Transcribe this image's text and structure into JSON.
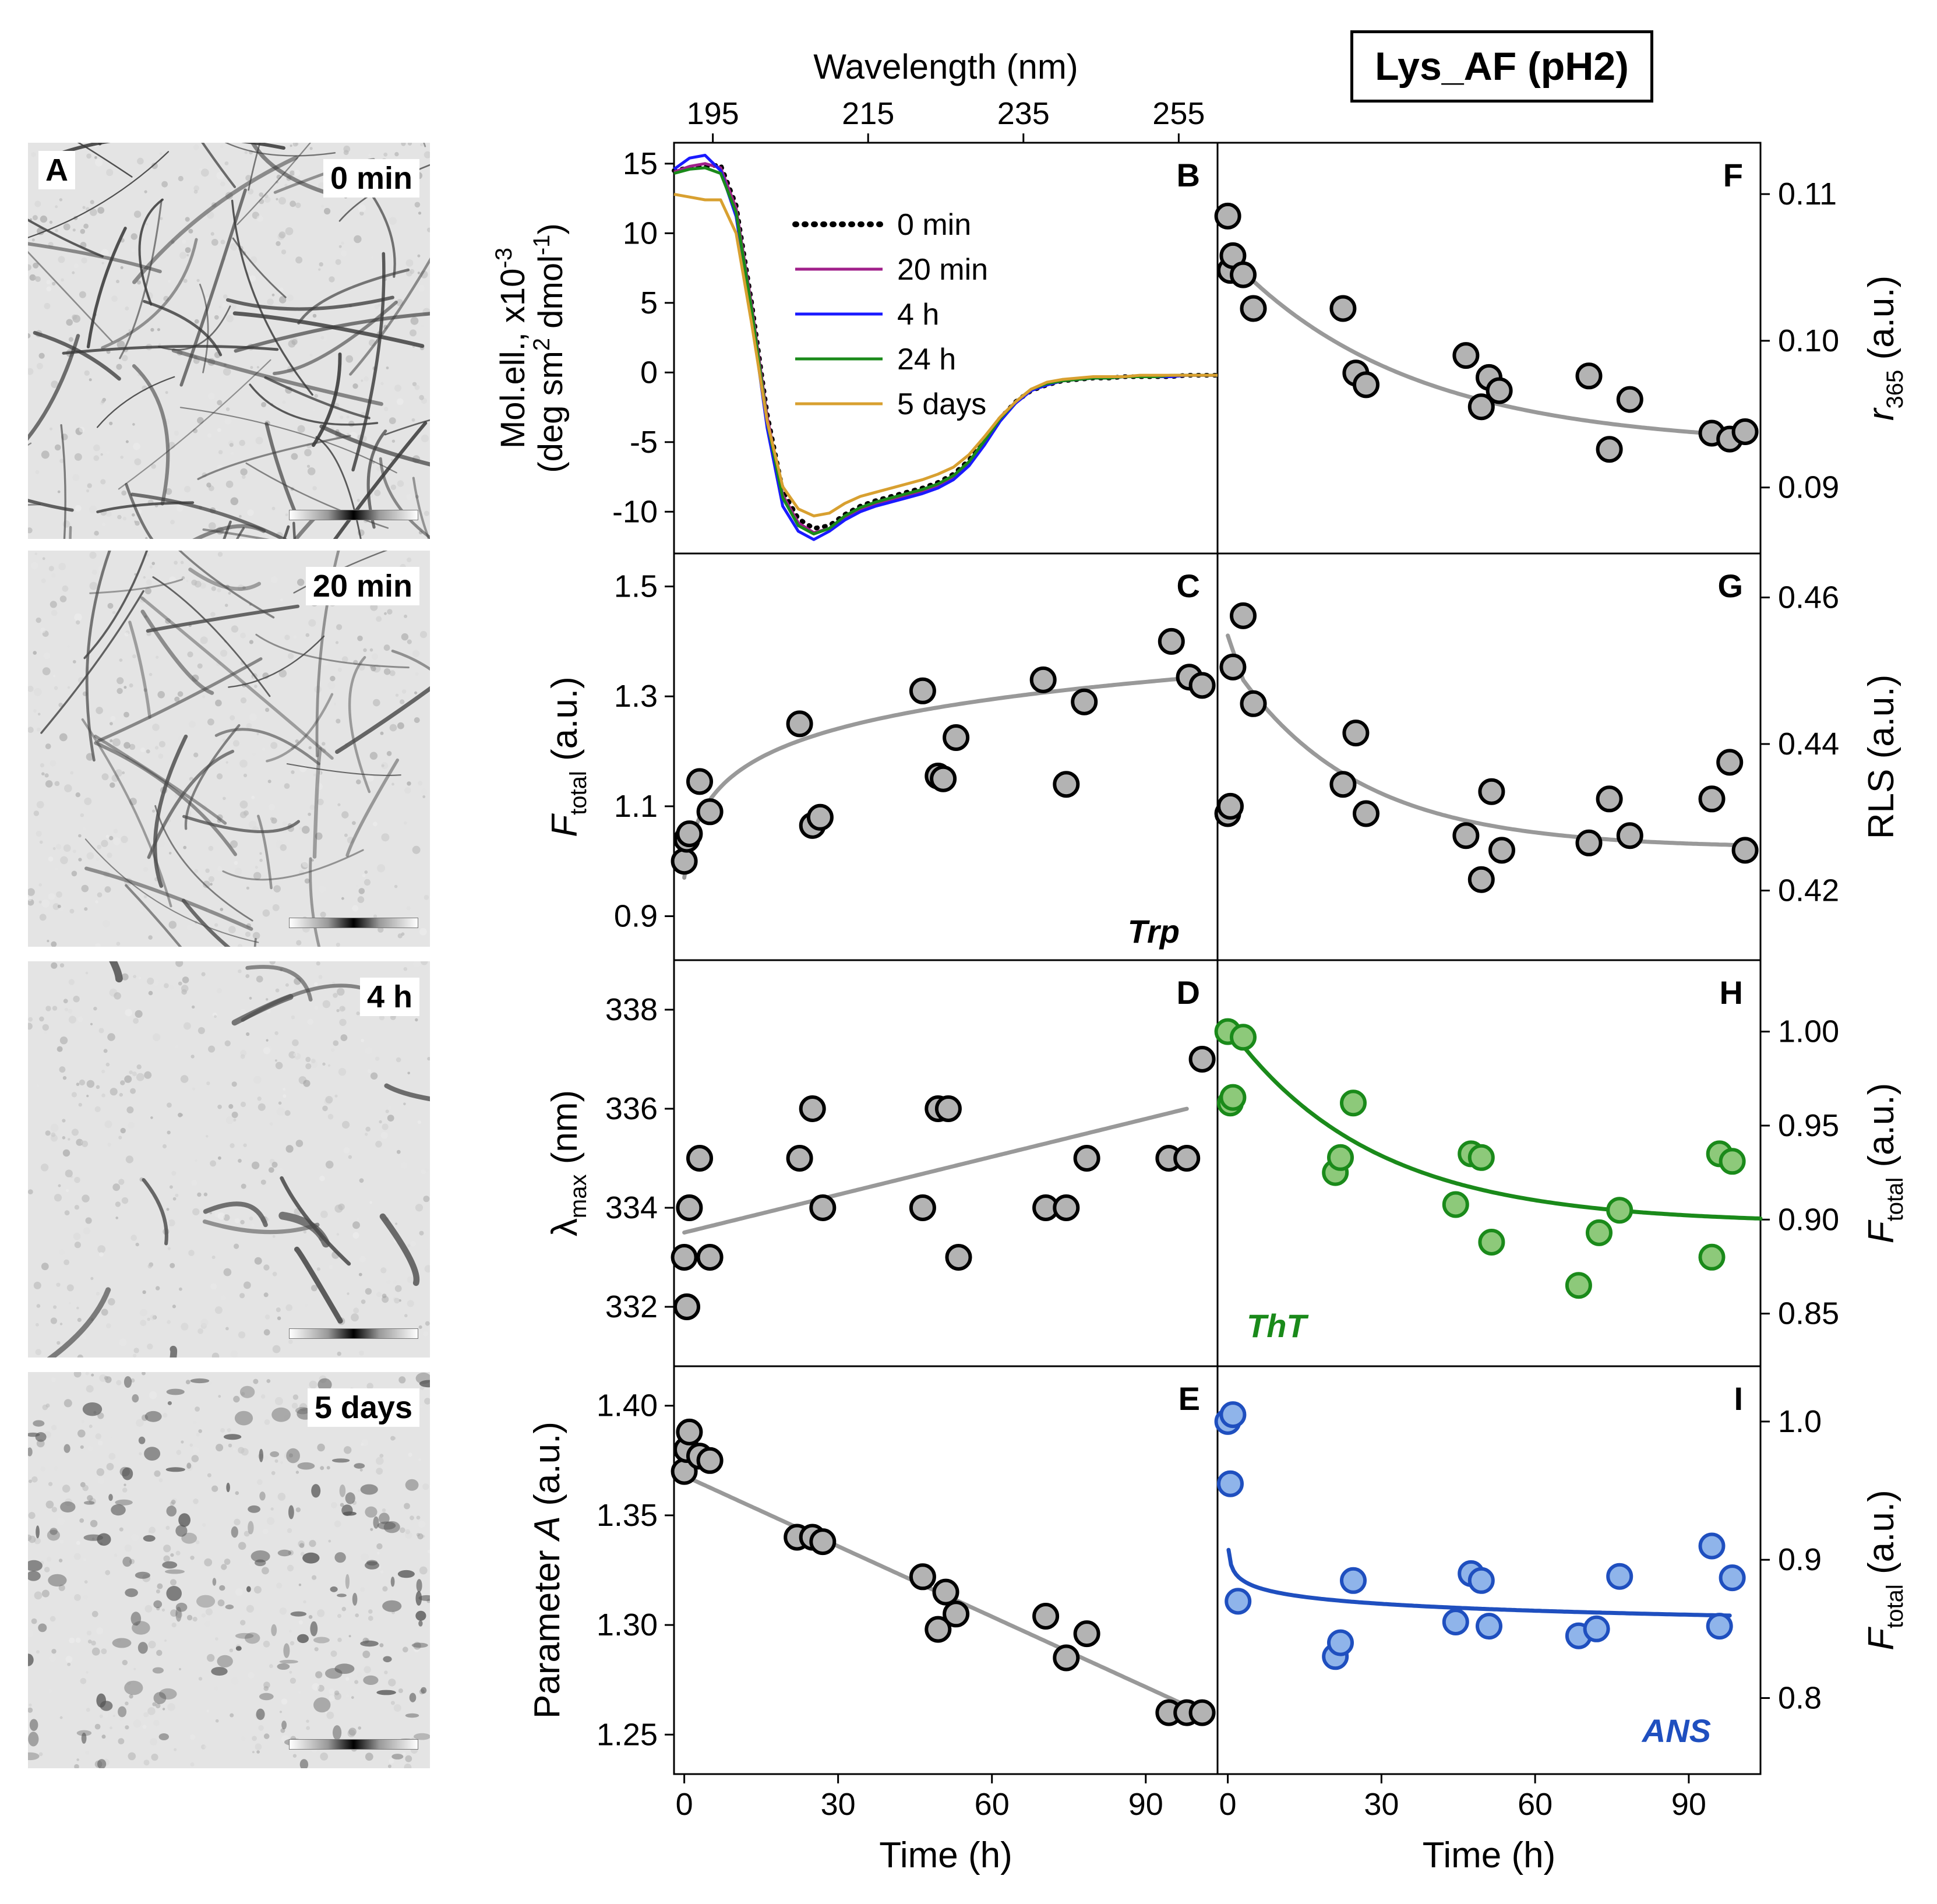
{
  "title": "Lys_AF (pH2)",
  "tem_panels": [
    {
      "letter": "A",
      "time": "0 min"
    },
    {
      "letter": "",
      "time": "20 min"
    },
    {
      "letter": "",
      "time": "4 h"
    },
    {
      "letter": "",
      "time": "5 days"
    }
  ],
  "colors": {
    "gray_fit": "#999999",
    "marker_gray": "#b3b3b3",
    "green": "#1a8a1a",
    "marker_green": "#8dc97a",
    "blue": "#1f4fbf",
    "marker_blue": "#8fb4ea"
  },
  "chart_data": [
    {
      "id": "B",
      "type": "line",
      "title": "",
      "xlabel": "Wavelength (nm)",
      "ylabel_line1": "Mol.ell., x10",
      "ylabel_sup": "-3",
      "ylabel_line2": "(deg sm",
      "ylabel_line2_sup": "2",
      "ylabel_line2_mid": " dmol",
      "ylabel_line2_sup2": "-1",
      "ylabel_line2_end": ")",
      "xlim": [
        190,
        260
      ],
      "ylim": [
        -13,
        16.5
      ],
      "xticks": [
        195,
        215,
        235,
        255
      ],
      "yticks": [
        15,
        10,
        5,
        0,
        -5,
        -10
      ],
      "x": [
        190,
        192,
        194,
        196,
        198,
        200,
        202,
        204,
        206,
        208,
        210,
        212,
        214,
        216,
        218,
        220,
        222,
        224,
        226,
        228,
        230,
        232,
        234,
        236,
        238,
        240,
        242,
        244,
        246,
        248,
        250,
        252,
        254,
        256,
        258,
        260
      ],
      "series": [
        {
          "name": "0 min",
          "color": "#000000",
          "dash": true,
          "values": [
            14.5,
            14.7,
            14.8,
            14.9,
            12.0,
            5.0,
            -3.0,
            -8.5,
            -10.5,
            -11.2,
            -11.0,
            -10.2,
            -9.6,
            -9.2,
            -8.9,
            -8.6,
            -8.3,
            -7.9,
            -7.3,
            -6.3,
            -4.8,
            -3.3,
            -2.1,
            -1.3,
            -0.9,
            -0.6,
            -0.5,
            -0.4,
            -0.4,
            -0.3,
            -0.3,
            -0.3,
            -0.3,
            -0.2,
            -0.2,
            -0.2
          ]
        },
        {
          "name": "20 min",
          "color": "#a0208a",
          "dash": false,
          "values": [
            14.4,
            14.8,
            15.0,
            14.7,
            11.8,
            4.8,
            -3.2,
            -8.8,
            -10.8,
            -11.5,
            -11.2,
            -10.4,
            -9.8,
            -9.4,
            -9.1,
            -8.8,
            -8.5,
            -8.1,
            -7.5,
            -6.5,
            -5.0,
            -3.4,
            -2.2,
            -1.3,
            -0.9,
            -0.6,
            -0.5,
            -0.4,
            -0.4,
            -0.3,
            -0.3,
            -0.3,
            -0.3,
            -0.2,
            -0.2,
            -0.2
          ]
        },
        {
          "name": "4 h",
          "color": "#1a1aff",
          "dash": false,
          "values": [
            14.6,
            15.4,
            15.6,
            14.5,
            11.2,
            4.0,
            -4.0,
            -9.6,
            -11.4,
            -12.0,
            -11.4,
            -10.6,
            -10.0,
            -9.6,
            -9.3,
            -9.0,
            -8.7,
            -8.3,
            -7.7,
            -6.7,
            -5.2,
            -3.5,
            -2.2,
            -1.3,
            -0.9,
            -0.6,
            -0.5,
            -0.4,
            -0.4,
            -0.3,
            -0.3,
            -0.3,
            -0.3,
            -0.2,
            -0.2,
            -0.2
          ]
        },
        {
          "name": "24 h",
          "color": "#1a8a1a",
          "dash": false,
          "values": [
            14.3,
            14.6,
            14.7,
            14.3,
            11.5,
            4.5,
            -3.5,
            -9.0,
            -11.0,
            -11.6,
            -11.2,
            -10.3,
            -9.7,
            -9.3,
            -9.0,
            -8.7,
            -8.4,
            -8.0,
            -7.4,
            -6.4,
            -4.9,
            -3.3,
            -2.1,
            -1.2,
            -0.8,
            -0.6,
            -0.5,
            -0.4,
            -0.4,
            -0.3,
            -0.3,
            -0.3,
            -0.2,
            -0.2,
            -0.2,
            -0.2
          ]
        },
        {
          "name": "5 days",
          "color": "#d8a030",
          "dash": false,
          "values": [
            12.8,
            12.6,
            12.4,
            12.4,
            10.0,
            3.5,
            -3.5,
            -8.2,
            -9.8,
            -10.3,
            -10.1,
            -9.4,
            -8.9,
            -8.6,
            -8.3,
            -8.0,
            -7.7,
            -7.3,
            -6.8,
            -5.9,
            -4.6,
            -3.2,
            -2.1,
            -1.2,
            -0.7,
            -0.5,
            -0.4,
            -0.3,
            -0.3,
            -0.3,
            -0.2,
            -0.2,
            -0.2,
            -0.2,
            -0.2,
            -0.2
          ]
        }
      ]
    },
    {
      "id": "C",
      "type": "scatter",
      "annotation": "Trp",
      "ylabel": "F",
      "ylabel_sub": "total",
      "ylabel_end": " (a.u.)",
      "xlim": [
        -2,
        104
      ],
      "ylim": [
        0.82,
        1.56
      ],
      "yticks": [
        1.5,
        1.3,
        1.1,
        0.9
      ],
      "x": [
        0,
        0.5,
        1,
        3,
        5,
        22.5,
        25,
        26.5,
        46.5,
        49.5,
        50.5,
        53,
        70,
        74.5,
        78,
        95,
        98.5,
        101
      ],
      "values": [
        1.0,
        1.04,
        1.05,
        1.145,
        1.09,
        1.25,
        1.065,
        1.08,
        1.31,
        1.155,
        1.15,
        1.225,
        1.33,
        1.14,
        1.29,
        1.4,
        1.335,
        1.32
      ],
      "fit": {
        "form": "log",
        "a": 0.97,
        "b": 0.079,
        "c": 1,
        "xmin": 0,
        "xmax": 98
      }
    },
    {
      "id": "D",
      "type": "scatter",
      "ylabel": "λ",
      "ylabel_sub": "max",
      "ylabel_end": " (nm)",
      "xlim": [
        -2,
        104
      ],
      "ylim": [
        330.8,
        339
      ],
      "yticks": [
        338,
        336,
        334,
        332
      ],
      "x": [
        0,
        0.5,
        1,
        3,
        5,
        22.5,
        25,
        27,
        46.5,
        49.5,
        51.5,
        53.5,
        70.5,
        74.5,
        78.5,
        94.5,
        98,
        101
      ],
      "values": [
        333,
        332,
        334,
        335,
        333,
        335,
        336,
        334,
        334,
        336,
        336,
        333,
        334,
        334,
        335,
        335,
        335,
        337
      ],
      "fit": {
        "form": "linear",
        "a": 333.5,
        "b": 0.0255,
        "xmin": 0,
        "xmax": 98
      }
    },
    {
      "id": "E",
      "type": "scatter",
      "xlabel": "Time (h)",
      "ylabel": "Parameter ",
      "ylabel_it": "A",
      "ylabel_end": " (a.u.)",
      "xlim": [
        -2,
        104
      ],
      "ylim": [
        1.232,
        1.418
      ],
      "yticks": [
        1.4,
        1.35,
        1.3,
        1.25
      ],
      "xticks": [
        0,
        30,
        60,
        90
      ],
      "x": [
        0,
        0.5,
        1,
        3,
        5,
        22,
        25,
        27,
        46.5,
        49.5,
        51,
        53,
        70.5,
        74.5,
        78.5,
        94.5,
        98,
        101
      ],
      "values": [
        1.37,
        1.38,
        1.388,
        1.377,
        1.375,
        1.34,
        1.34,
        1.338,
        1.322,
        1.298,
        1.315,
        1.305,
        1.304,
        1.285,
        1.296,
        1.26,
        1.26,
        1.26
      ],
      "fit": {
        "form": "linear",
        "a": 1.368,
        "b": -0.00107,
        "xmin": 0,
        "xmax": 101
      }
    },
    {
      "id": "F",
      "type": "scatter",
      "ylabel": "r",
      "ylabel_sub": "365",
      "ylabel_end": " (a.u.)",
      "xlim": [
        -2,
        104
      ],
      "ylim": [
        0.0855,
        0.1135
      ],
      "yticks": [
        0.11,
        0.1,
        0.09
      ],
      "x": [
        0,
        0.5,
        1,
        3,
        5,
        22.5,
        25,
        27,
        46.5,
        49.5,
        51,
        53,
        70.5,
        74.5,
        78.5,
        94.5,
        98,
        101
      ],
      "values": [
        0.1085,
        0.1048,
        0.1058,
        0.1045,
        0.1022,
        0.1022,
        0.0978,
        0.097,
        0.099,
        0.0955,
        0.0975,
        0.0966,
        0.0976,
        0.0926,
        0.096,
        0.0937,
        0.0933,
        0.0938
      ],
      "fit": {
        "form": "exp",
        "a": 0.0928,
        "b": 0.013,
        "c": 35,
        "xmin": 0,
        "xmax": 101
      }
    },
    {
      "id": "G",
      "type": "scatter",
      "ylabel": "RLS (a.u.)",
      "xlim": [
        -2,
        104
      ],
      "ylim": [
        0.4105,
        0.466
      ],
      "yticks": [
        0.46,
        0.44,
        0.42
      ],
      "x": [
        0,
        0.5,
        1,
        3,
        5,
        22.5,
        25,
        27,
        46.5,
        49.5,
        51.5,
        53.5,
        70.5,
        74.5,
        78.5,
        94.5,
        98,
        101
      ],
      "values": [
        0.4305,
        0.4315,
        0.4505,
        0.4575,
        0.4455,
        0.4345,
        0.4415,
        0.4305,
        0.4275,
        0.4215,
        0.4335,
        0.4255,
        0.4265,
        0.4325,
        0.4275,
        0.4325,
        0.4375,
        0.4255
      ],
      "fit": {
        "form": "exp_log",
        "a": 0.4258,
        "b": 0.026,
        "c": 0.45,
        "d": 24,
        "xmin": 0,
        "xmax": 101
      }
    },
    {
      "id": "H",
      "type": "scatter",
      "annotation": "ThT",
      "ylabel": "F",
      "ylabel_sub": "total",
      "ylabel_end": " (a.u.)",
      "xlim": [
        -2,
        104
      ],
      "ylim": [
        0.822,
        1.038
      ],
      "yticks": [
        1.0,
        0.95,
        0.9,
        0.85
      ],
      "x": [
        0,
        0.5,
        1,
        3,
        21,
        22,
        24.5,
        44.5,
        47.5,
        49.5,
        51.5,
        68.5,
        72.5,
        76.5,
        94.5,
        96,
        98.5
      ],
      "values": [
        1.0,
        0.962,
        0.965,
        0.997,
        0.925,
        0.933,
        0.962,
        0.908,
        0.935,
        0.933,
        0.888,
        0.865,
        0.893,
        0.905,
        0.88,
        0.935,
        0.931
      ],
      "fit": {
        "form": "exp",
        "a": 0.898,
        "b": 0.105,
        "c": 28,
        "xmin": 0,
        "xmax": 104
      }
    },
    {
      "id": "I",
      "type": "scatter",
      "annotation": "ANS",
      "xlabel": "Time (h)",
      "ylabel": "F",
      "ylabel_sub": "total",
      "ylabel_end": " (a.u.)",
      "xlim": [
        -2,
        104
      ],
      "ylim": [
        0.745,
        1.04
      ],
      "yticks": [
        1.0,
        0.9,
        0.8
      ],
      "xticks": [
        0,
        30,
        60,
        90
      ],
      "x": [
        0,
        0.5,
        1,
        2,
        21,
        22,
        24.5,
        44.5,
        47.5,
        49.5,
        51,
        68.5,
        72,
        76.5,
        94.5,
        96,
        98.5
      ],
      "values": [
        1.0,
        0.955,
        1.005,
        0.87,
        0.83,
        0.84,
        0.885,
        0.855,
        0.89,
        0.885,
        0.852,
        0.845,
        0.85,
        0.888,
        0.91,
        0.852,
        0.887
      ],
      "fit": {
        "form": "power",
        "a": 0.893,
        "b": -0.0083,
        "xmin": 0.15,
        "xmax": 98
      }
    }
  ]
}
